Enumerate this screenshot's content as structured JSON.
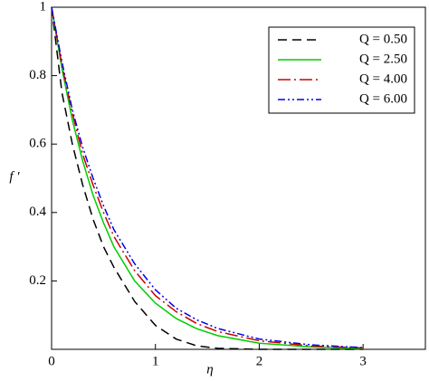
{
  "chart_data": {
    "type": "line",
    "x_label": "η",
    "y_label": "f ′",
    "x": [
      0,
      0.1,
      0.2,
      0.3,
      0.4,
      0.5,
      0.6,
      0.8,
      1,
      1.2,
      1.4,
      1.6,
      2,
      2.5,
      3
    ],
    "series": [
      {
        "name": "Q = 0.50",
        "color": "#000000",
        "dash": "10,6",
        "values": [
          1,
          0.75,
          0.6,
          0.48,
          0.38,
          0.3,
          0.24,
          0.14,
          0.07,
          0.03,
          0.01,
          0.003,
          0,
          0,
          0
        ]
      },
      {
        "name": "Q = 2.50",
        "color": "#00cc00",
        "dash": "none",
        "values": [
          1,
          0.82,
          0.67,
          0.55,
          0.45,
          0.37,
          0.3,
          0.2,
          0.135,
          0.09,
          0.06,
          0.04,
          0.018,
          0.007,
          0.002
        ]
      },
      {
        "name": "Q = 4.00",
        "color": "#cc0000",
        "dash": "14,4,2,4",
        "values": [
          1,
          0.83,
          0.69,
          0.57,
          0.48,
          0.4,
          0.33,
          0.23,
          0.157,
          0.11,
          0.075,
          0.052,
          0.025,
          0.01,
          0.004
        ]
      },
      {
        "name": "Q = 6.00",
        "color": "#0000ee",
        "dash": "8,3,2,3,2,3",
        "values": [
          1,
          0.84,
          0.7,
          0.59,
          0.5,
          0.42,
          0.35,
          0.25,
          0.174,
          0.12,
          0.086,
          0.061,
          0.03,
          0.013,
          0.005
        ]
      }
    ],
    "xlim": [
      0,
      3.6
    ],
    "ylim": [
      0,
      1
    ],
    "xticks": [
      0,
      1,
      2,
      3
    ],
    "yticks": [
      0.2,
      0.4,
      0.6,
      0.8,
      1
    ],
    "legend": "upper-right"
  }
}
